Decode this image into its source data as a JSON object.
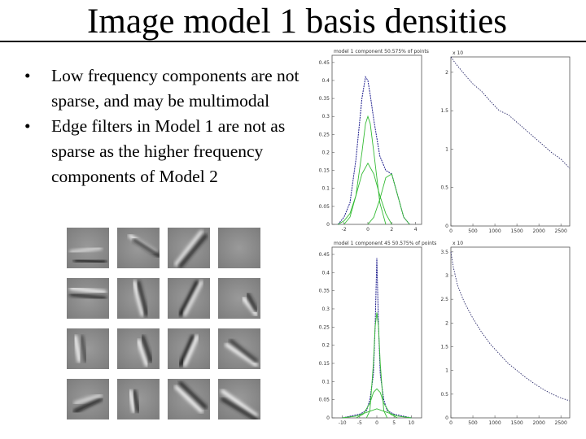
{
  "slide": {
    "title": "Image model 1 basis densities",
    "bullets": [
      "Low frequency components are not sparse, and may be multimodal",
      "Edge filters in Model 1 are not as sparse as the higher frequency components of Model 2"
    ],
    "bullet_symbol": "•",
    "colors": {
      "text": "#000000",
      "density_total": "#1a1a8c",
      "density_components": "#33bb33",
      "decay_curve": "#2a2a6a"
    }
  },
  "filters": {
    "rows": 4,
    "cols": 4,
    "description_icons": [
      "edge-filter",
      "blob-filter",
      "oriented-edge-filter"
    ]
  },
  "chart_data": [
    {
      "type": "line",
      "title": "model 1 component     50.575% of points",
      "x_ticks": [
        "-2",
        "0",
        "2",
        "4"
      ],
      "y_ticks": [
        "0",
        "0.05",
        "0.1",
        "0.15",
        "0.2",
        "0.25",
        "0.3",
        "0.35",
        "0.4",
        "0.45"
      ],
      "xlim": [
        -3,
        4.5
      ],
      "ylim": [
        0,
        0.47
      ],
      "series": [
        {
          "role": "total",
          "x": [
            -2.5,
            -2,
            -1.5,
            -1,
            -0.5,
            -0.2,
            0,
            0.2,
            0.5,
            1,
            1.5,
            2,
            2.5,
            3,
            3.5
          ],
          "values": [
            0.0,
            0.02,
            0.06,
            0.18,
            0.35,
            0.41,
            0.4,
            0.36,
            0.29,
            0.19,
            0.15,
            0.14,
            0.08,
            0.02,
            0.0
          ]
        },
        {
          "role": "component",
          "x": [
            -2.5,
            -2,
            -1.5,
            -1,
            -0.5,
            0,
            0.5,
            1,
            1.5,
            2
          ],
          "values": [
            0.0,
            0.01,
            0.03,
            0.08,
            0.14,
            0.17,
            0.14,
            0.08,
            0.03,
            0.0
          ]
        },
        {
          "role": "component",
          "x": [
            -2,
            -1.5,
            -1,
            -0.5,
            -0.2,
            0,
            0.2,
            0.5,
            1,
            1.5
          ],
          "values": [
            0.0,
            0.02,
            0.08,
            0.2,
            0.28,
            0.3,
            0.28,
            0.2,
            0.06,
            0.0
          ]
        },
        {
          "role": "component",
          "x": [
            0,
            0.5,
            1,
            1.5,
            2,
            2.5,
            3,
            3.5
          ],
          "values": [
            0.0,
            0.02,
            0.07,
            0.13,
            0.14,
            0.08,
            0.02,
            0.0
          ]
        }
      ]
    },
    {
      "type": "line",
      "title": "x 10",
      "x_ticks": [
        "0",
        "500",
        "1000",
        "1500",
        "2000",
        "2500"
      ],
      "y_ticks": [
        "0",
        "0.5",
        "1",
        "1.5",
        "2"
      ],
      "xlim": [
        0,
        2700
      ],
      "ylim": [
        0,
        2.2
      ],
      "series": [
        {
          "role": "decay",
          "x": [
            0,
            100,
            300,
            500,
            700,
            900,
            1100,
            1300,
            1500,
            1700,
            1900,
            2100,
            2300,
            2500,
            2700
          ],
          "values": [
            2.2,
            2.12,
            1.98,
            1.85,
            1.75,
            1.62,
            1.5,
            1.45,
            1.35,
            1.25,
            1.15,
            1.05,
            0.95,
            0.87,
            0.75
          ]
        }
      ]
    },
    {
      "type": "line",
      "title": "model 1 component 45     50.575% of points",
      "x_ticks": [
        "-10",
        "-5",
        "0",
        "5",
        "10"
      ],
      "y_ticks": [
        "0",
        "0.05",
        "0.1",
        "0.15",
        "0.2",
        "0.25",
        "0.3",
        "0.35",
        "0.4",
        "0.45"
      ],
      "xlim": [
        -13,
        13
      ],
      "ylim": [
        0,
        0.47
      ],
      "series": [
        {
          "role": "total",
          "x": [
            -10,
            -5,
            -3,
            -2,
            -1,
            -0.5,
            0,
            0.5,
            1,
            2,
            3,
            5,
            10
          ],
          "values": [
            0.0,
            0.01,
            0.02,
            0.05,
            0.12,
            0.25,
            0.44,
            0.25,
            0.12,
            0.05,
            0.02,
            0.01,
            0.0
          ]
        },
        {
          "role": "component",
          "x": [
            -3,
            -2,
            -1,
            -0.5,
            0,
            0.5,
            1,
            2,
            3
          ],
          "values": [
            0.0,
            0.02,
            0.15,
            0.25,
            0.29,
            0.25,
            0.15,
            0.02,
            0.0
          ]
        },
        {
          "role": "component",
          "x": [
            -6,
            -4,
            -2,
            -1,
            0,
            1,
            2,
            4,
            6
          ],
          "values": [
            0.0,
            0.01,
            0.04,
            0.07,
            0.08,
            0.07,
            0.04,
            0.01,
            0.0
          ]
        },
        {
          "role": "component",
          "x": [
            -10,
            -6,
            -3,
            0,
            3,
            6,
            10
          ],
          "values": [
            0.0,
            0.005,
            0.015,
            0.025,
            0.015,
            0.005,
            0.0
          ]
        }
      ]
    },
    {
      "type": "line",
      "title": "x 10",
      "x_ticks": [
        "0",
        "500",
        "1000",
        "1500",
        "2000",
        "2500"
      ],
      "y_ticks": [
        "0",
        "0.5",
        "1",
        "1.5",
        "2",
        "2.5",
        "3",
        "3.5"
      ],
      "xlim": [
        0,
        2700
      ],
      "ylim": [
        0,
        3.6
      ],
      "series": [
        {
          "role": "decay",
          "x": [
            0,
            50,
            150,
            300,
            500,
            700,
            900,
            1100,
            1300,
            1500,
            1700,
            1900,
            2100,
            2300,
            2500,
            2700
          ],
          "values": [
            3.5,
            3.2,
            2.8,
            2.45,
            2.1,
            1.8,
            1.55,
            1.35,
            1.15,
            1.0,
            0.85,
            0.72,
            0.6,
            0.5,
            0.42,
            0.36
          ]
        }
      ]
    }
  ]
}
